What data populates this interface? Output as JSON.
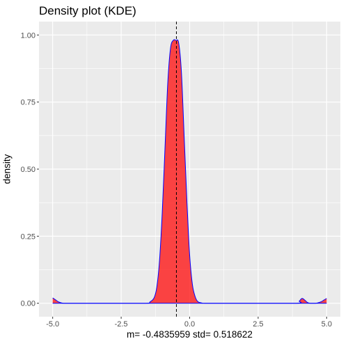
{
  "chart_data": {
    "type": "area",
    "title": "Density plot (KDE)",
    "xlabel": "m=  -0.4835959  std=  0.518622",
    "ylabel": "density",
    "xlim": [
      -5.5,
      5.5
    ],
    "ylim": [
      -0.05,
      1.05
    ],
    "x_ticks": [
      -5.0,
      -2.5,
      0.0,
      2.5,
      5.0
    ],
    "x_tick_labels": [
      "-5.0",
      "-2.5",
      "0.0",
      "2.5",
      "5.0"
    ],
    "y_ticks": [
      0.0,
      0.25,
      0.5,
      0.75,
      1.0
    ],
    "y_tick_labels": [
      "0.00",
      "0.25",
      "0.50",
      "0.75",
      "1.00"
    ],
    "grid": true,
    "mean_line_x": -0.4835959,
    "colors": {
      "fill": "#ff0000",
      "outline": "#0000ff",
      "panel": "#ebebeb",
      "grid": "#ffffff",
      "vline": "#000000"
    },
    "series": [
      {
        "x": [
          -5.0,
          -4.9,
          -4.8,
          -4.7,
          -4.6,
          -4.4,
          -3.0,
          -1.6,
          -1.45,
          -1.3,
          -1.2,
          -1.1,
          -1.0,
          -0.9,
          -0.8,
          -0.7,
          -0.6,
          -0.5,
          -0.4,
          -0.3,
          -0.2,
          -0.1,
          0.0,
          0.1,
          0.2,
          0.3,
          0.45,
          0.6,
          2.0,
          3.9,
          4.0,
          4.1,
          4.2,
          4.3,
          4.4,
          4.6,
          4.8,
          4.9,
          5.0
        ],
        "y": [
          0.02,
          0.013,
          0.006,
          0.002,
          0.0,
          0.0,
          0.0,
          0.0,
          0.005,
          0.02,
          0.06,
          0.16,
          0.34,
          0.58,
          0.82,
          0.95,
          0.98,
          0.98,
          0.97,
          0.86,
          0.62,
          0.38,
          0.18,
          0.07,
          0.025,
          0.006,
          0.001,
          0.0,
          0.0,
          0.0,
          0.008,
          0.018,
          0.012,
          0.003,
          0.0,
          0.0,
          0.006,
          0.012,
          0.018
        ]
      }
    ]
  }
}
